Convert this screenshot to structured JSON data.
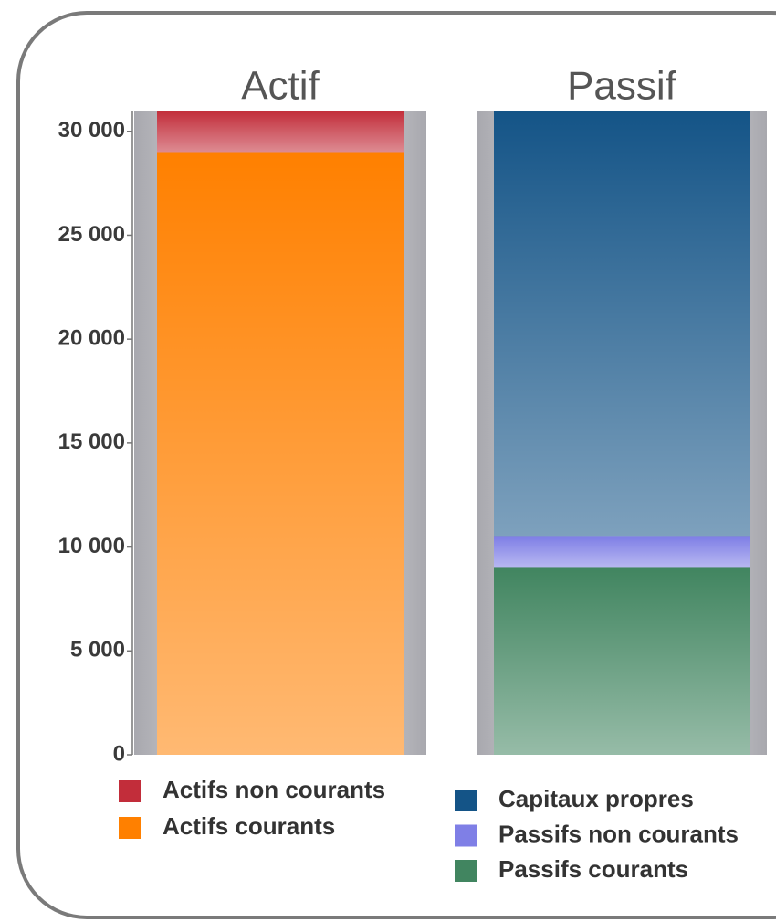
{
  "chart_data": {
    "type": "stacked_bar",
    "categories": [
      "Actif",
      "Passif"
    ],
    "series": [
      {
        "name": "Actifs non courants",
        "color": "#c22d3a",
        "values": [
          2000,
          null
        ]
      },
      {
        "name": "Actifs courants",
        "color": "#ff8000",
        "values": [
          29000,
          null
        ]
      },
      {
        "name": "Capitaux propres",
        "color": "#145487",
        "values": [
          null,
          20500
        ]
      },
      {
        "name": "Passifs non courants",
        "color": "#7f7fe6",
        "values": [
          null,
          1500
        ]
      },
      {
        "name": "Passifs courants",
        "color": "#418560",
        "values": [
          null,
          9000
        ]
      }
    ],
    "ylim": [
      0,
      31000
    ],
    "yticks": [
      0,
      {
        "value": 5000,
        "label": "5 000"
      },
      {
        "value": 10000,
        "label": "10 000"
      },
      {
        "value": 15000,
        "label": "15 000"
      },
      {
        "value": 20000,
        "label": "20 000"
      },
      {
        "value": 25000,
        "label": "25 000"
      },
      {
        "value": 30000,
        "label": "30 000"
      }
    ]
  }
}
